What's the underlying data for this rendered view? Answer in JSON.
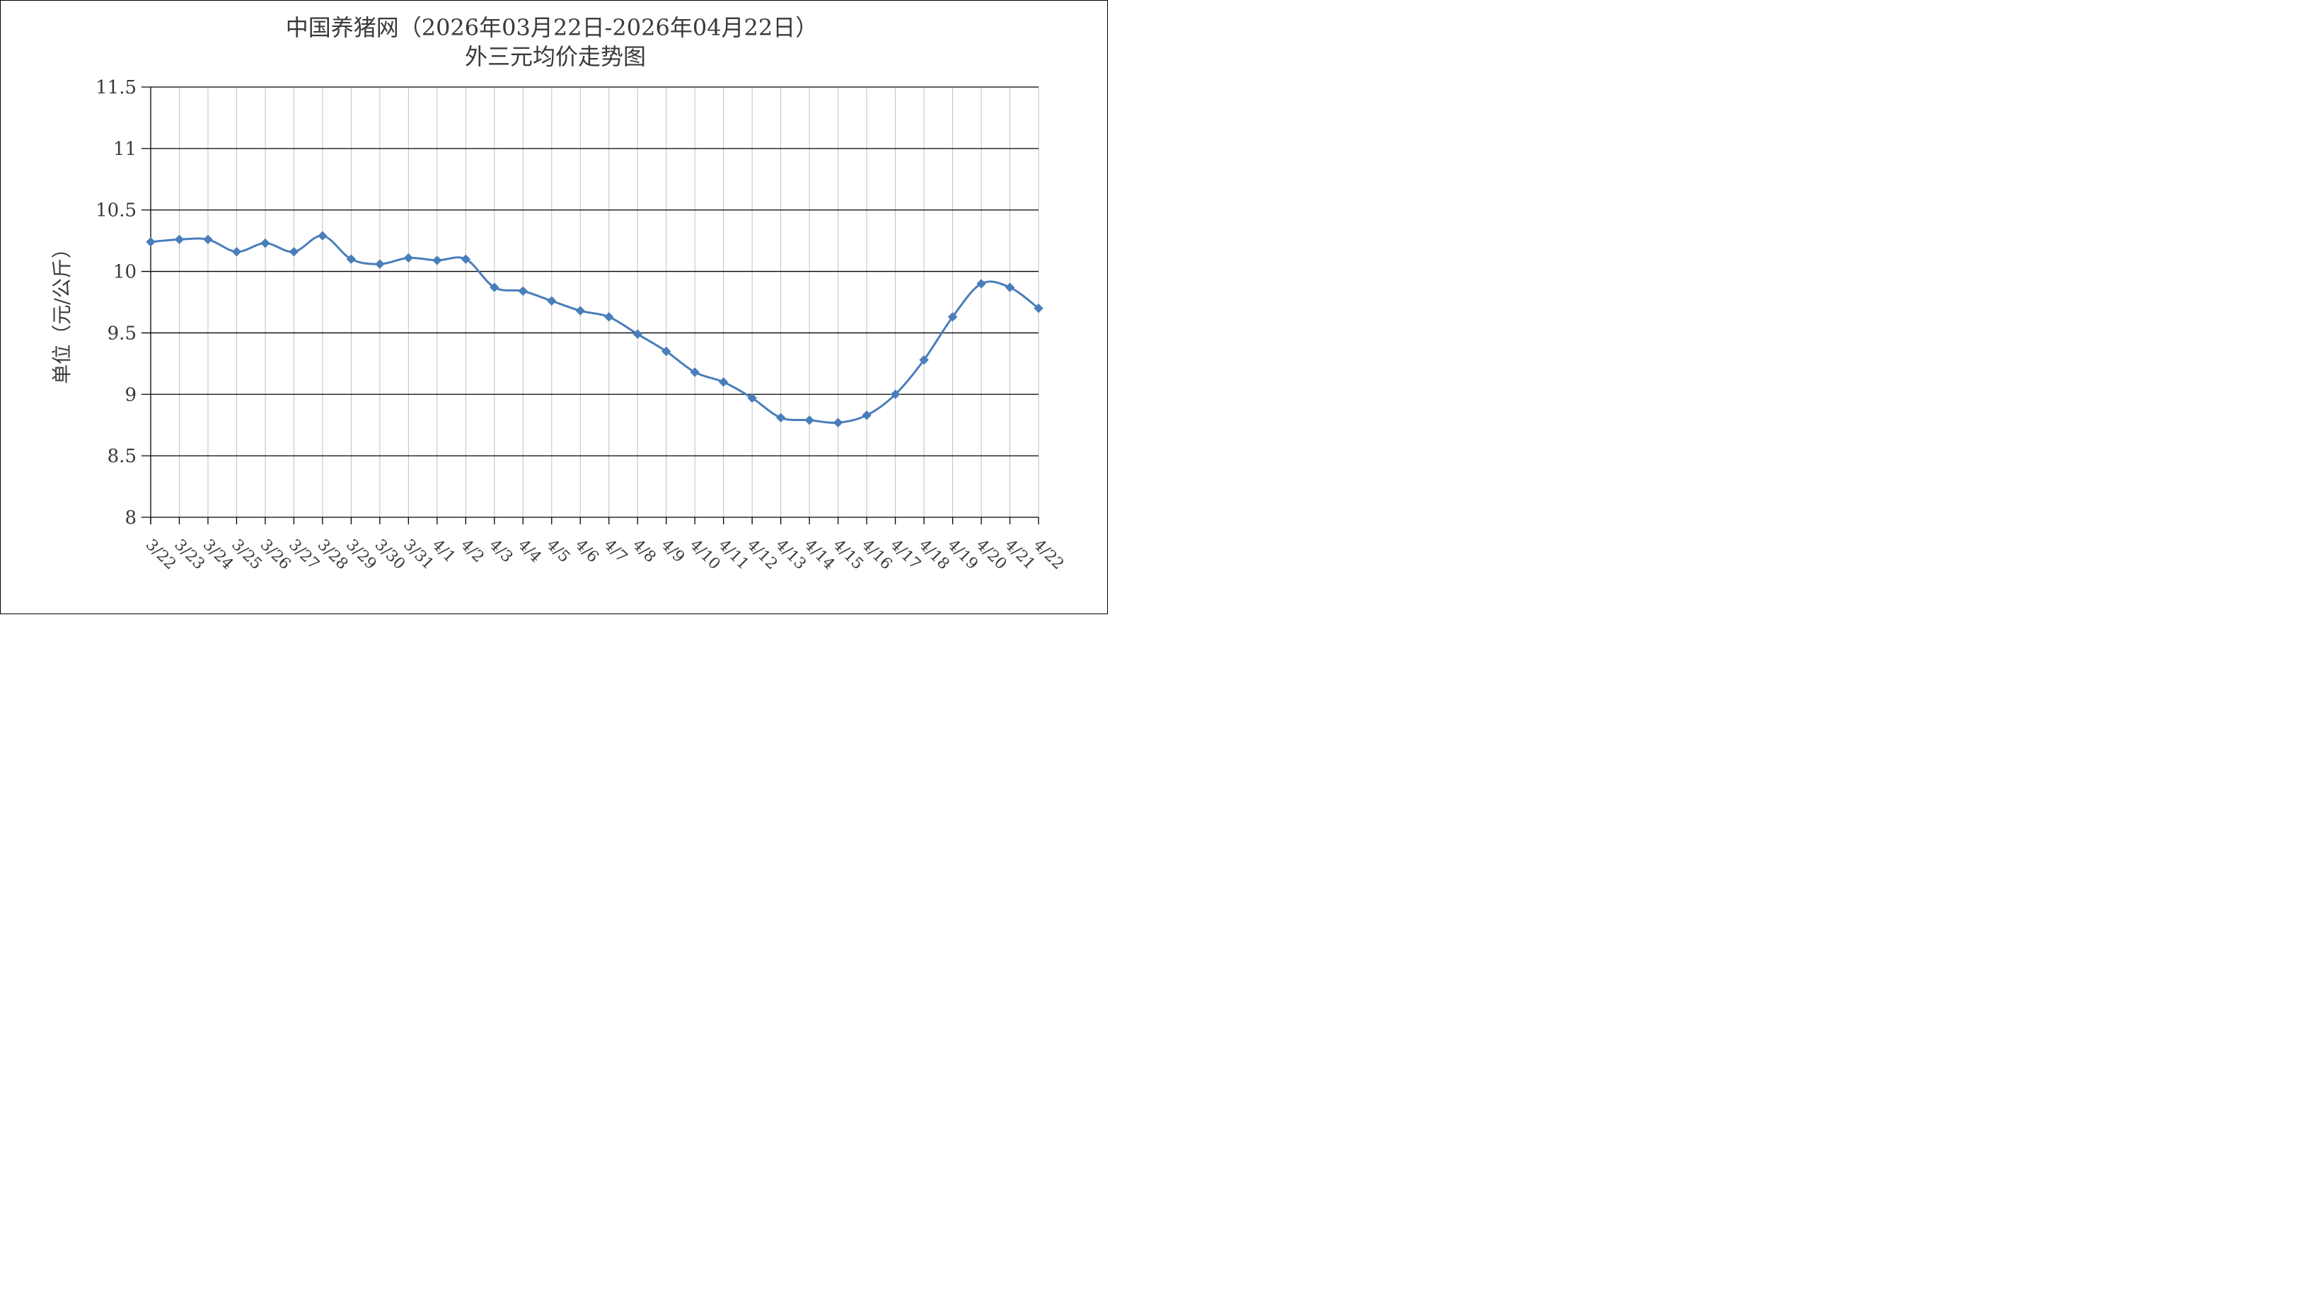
{
  "chart_data": {
    "type": "line",
    "title": "中国养猪网（2026年03月22日-2026年04月22日）",
    "subtitle": "外三元均价走势图",
    "xlabel": "",
    "ylabel": "单位（元/公斤）",
    "ylim": [
      8,
      11.5
    ],
    "yticks": [
      "11.5",
      "11",
      "10.5",
      "10",
      "9.5",
      "9",
      "8.5",
      "8"
    ],
    "ytick_values": [
      11.5,
      11,
      10.5,
      10,
      9.5,
      9,
      8.5,
      8
    ],
    "grid": true,
    "legend": "none",
    "line_color": "#4a7ebb",
    "categories": [
      "3/22",
      "3/23",
      "3/24",
      "3/25",
      "3/26",
      "3/27",
      "3/28",
      "3/29",
      "3/30",
      "3/31",
      "4/1",
      "4/2",
      "4/3",
      "4/4",
      "4/5",
      "4/6",
      "4/7",
      "4/8",
      "4/9",
      "4/10",
      "4/11",
      "4/12",
      "4/13",
      "4/14",
      "4/15",
      "4/16",
      "4/17",
      "4/18",
      "4/19",
      "4/20",
      "4/21",
      "4/22"
    ],
    "values": [
      10.24,
      10.26,
      10.26,
      10.16,
      10.23,
      10.16,
      10.29,
      10.1,
      10.06,
      10.11,
      10.09,
      10.1,
      9.87,
      9.84,
      9.76,
      9.68,
      9.63,
      9.49,
      9.35,
      9.18,
      9.1,
      8.97,
      8.81,
      8.79,
      8.77,
      8.83,
      9.0,
      9.28,
      9.63,
      9.9,
      9.87,
      9.7
    ]
  }
}
